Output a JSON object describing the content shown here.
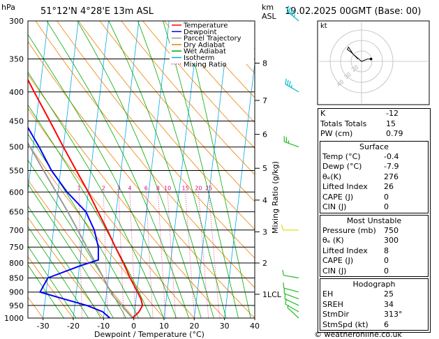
{
  "header": {
    "pressure_unit": "hPa",
    "location": "51°12'N  4°28'E  13m  ASL",
    "height_unit_line1": "km",
    "height_unit_line2": "ASL",
    "datetime": "19.02.2025  00GMT  (Base: 00)"
  },
  "footer": {
    "credit": "© weatheronline.co.uk"
  },
  "chart_data": {
    "type": "line",
    "xlabel": "Dewpoint / Temperature (°C)",
    "ylabel_right": "Mixing Ratio (g/kg)",
    "xlim": [
      -35,
      40
    ],
    "ylim": [
      1000,
      300
    ],
    "x_ticks": [
      -30,
      -20,
      -10,
      0,
      10,
      20,
      30,
      40
    ],
    "pressure_levels": [
      300,
      350,
      400,
      450,
      500,
      550,
      600,
      650,
      700,
      750,
      800,
      850,
      900,
      950,
      1000
    ],
    "km_ticks": [
      {
        "label": "8",
        "p": 356
      },
      {
        "label": "7",
        "p": 414
      },
      {
        "label": "6",
        "p": 475
      },
      {
        "label": "5",
        "p": 545
      },
      {
        "label": "4",
        "p": 620
      },
      {
        "label": "3",
        "p": 705
      },
      {
        "label": "2",
        "p": 800
      },
      {
        "label": "1LCL",
        "p": 908
      }
    ],
    "mixing_ratio_labels": [
      "1",
      "2",
      "3",
      "4",
      "6",
      "8",
      "10",
      "15",
      "20",
      "25"
    ],
    "mixing_ratio_values": [
      1,
      2,
      3,
      4,
      6,
      8,
      10,
      15,
      20,
      25
    ],
    "legend": [
      {
        "name": "Temperature",
        "color": "#ff0000",
        "style": "solid"
      },
      {
        "name": "Dewpoint",
        "color": "#0000ff",
        "style": "solid"
      },
      {
        "name": "Parcel Trajectory",
        "color": "#999999",
        "style": "solid"
      },
      {
        "name": "Dry Adiabat",
        "color": "#f08000",
        "style": "solid"
      },
      {
        "name": "Wet Adiabat",
        "color": "#00aa00",
        "style": "solid"
      },
      {
        "name": "Isotherm",
        "color": "#00aaee",
        "style": "solid"
      },
      {
        "name": "Mixing Ratio",
        "color": "#e0007f",
        "style": "dotted"
      }
    ],
    "temperature": [
      {
        "p": 1000,
        "t": -0.4
      },
      {
        "p": 975,
        "t": 1.5
      },
      {
        "p": 950,
        "t": 2.4
      },
      {
        "p": 925,
        "t": 1.6
      },
      {
        "p": 900,
        "t": 0.2
      },
      {
        "p": 850,
        "t": -2.8
      },
      {
        "p": 800,
        "t": -5.6
      },
      {
        "p": 750,
        "t": -8.9
      },
      {
        "p": 700,
        "t": -12.2
      },
      {
        "p": 650,
        "t": -16.0
      },
      {
        "p": 600,
        "t": -20.0
      },
      {
        "p": 550,
        "t": -24.8
      },
      {
        "p": 500,
        "t": -30.0
      },
      {
        "p": 450,
        "t": -35.5
      },
      {
        "p": 400,
        "t": -41.8
      },
      {
        "p": 350,
        "t": -48.8
      },
      {
        "p": 300,
        "t": -56.5
      }
    ],
    "dewpoint": [
      {
        "p": 1000,
        "t": -7.9
      },
      {
        "p": 975,
        "t": -10.5
      },
      {
        "p": 950,
        "t": -16.0
      },
      {
        "p": 925,
        "t": -24.0
      },
      {
        "p": 900,
        "t": -32.0
      },
      {
        "p": 850,
        "t": -30.0
      },
      {
        "p": 810,
        "t": -20.0
      },
      {
        "p": 790,
        "t": -14.0
      },
      {
        "p": 750,
        "t": -14.5
      },
      {
        "p": 700,
        "t": -16.5
      },
      {
        "p": 650,
        "t": -20.0
      },
      {
        "p": 600,
        "t": -27.0
      },
      {
        "p": 550,
        "t": -33.0
      },
      {
        "p": 500,
        "t": -38.0
      },
      {
        "p": 450,
        "t": -44.0
      },
      {
        "p": 400,
        "t": -51.0
      },
      {
        "p": 350,
        "t": -56.0
      },
      {
        "p": 300,
        "t": -64.0
      }
    ],
    "parcel": [
      {
        "p": 1000,
        "t": -0.4
      },
      {
        "p": 950,
        "t": -4.6
      },
      {
        "p": 908,
        "t": -8.2
      },
      {
        "p": 850,
        "t": -11.6
      },
      {
        "p": 800,
        "t": -14.8
      },
      {
        "p": 750,
        "t": -18.3
      },
      {
        "p": 700,
        "t": -22.0
      },
      {
        "p": 650,
        "t": -26.0
      },
      {
        "p": 600,
        "t": -30.6
      },
      {
        "p": 550,
        "t": -35.6
      },
      {
        "p": 500,
        "t": -41.0
      },
      {
        "p": 450,
        "t": -47.0
      },
      {
        "p": 400,
        "t": -53.5
      },
      {
        "p": 350,
        "t": -60.5
      },
      {
        "p": 300,
        "t": -68.0
      }
    ],
    "winds": [
      {
        "p": 1000,
        "dir": 313,
        "spd": 6
      },
      {
        "p": 975,
        "dir": 300,
        "spd": 8
      },
      {
        "p": 950,
        "dir": 295,
        "spd": 10
      },
      {
        "p": 925,
        "dir": 290,
        "spd": 12
      },
      {
        "p": 900,
        "dir": 285,
        "spd": 12
      },
      {
        "p": 850,
        "dir": 280,
        "spd": 12
      },
      {
        "p": 700,
        "dir": 270,
        "spd": 10
      },
      {
        "p": 500,
        "dir": 290,
        "spd": 25
      },
      {
        "p": 400,
        "dir": 300,
        "spd": 35
      },
      {
        "p": 300,
        "dir": 310,
        "spd": 45
      }
    ],
    "hodograph": {
      "unit": "kt",
      "ring_labels": [
        "40",
        "30",
        "20"
      ],
      "path": [
        [
          -3,
          2
        ],
        [
          -6,
          5
        ],
        [
          -9,
          8
        ],
        [
          -12,
          10
        ],
        [
          -11,
          12
        ],
        [
          -7,
          6
        ],
        [
          0,
          0
        ],
        [
          5,
          2
        ],
        [
          8,
          2
        ]
      ]
    }
  },
  "indices": {
    "top": [
      {
        "label": "K",
        "value": "-12"
      },
      {
        "label": "Totals Totals",
        "value": "15"
      },
      {
        "label": "PW (cm)",
        "value": "0.79"
      }
    ],
    "surface": {
      "title": "Surface",
      "rows": [
        {
          "label": "Temp (°C)",
          "value": "-0.4"
        },
        {
          "label": "Dewp (°C)",
          "value": "-7.9"
        },
        {
          "label": "θₑ(K)",
          "value": "276"
        },
        {
          "label": "Lifted Index",
          "value": "26"
        },
        {
          "label": "CAPE (J)",
          "value": "0"
        },
        {
          "label": "CIN (J)",
          "value": "0"
        }
      ]
    },
    "most_unstable": {
      "title": "Most Unstable",
      "rows": [
        {
          "label": "Pressure (mb)",
          "value": "750"
        },
        {
          "label": "θₑ (K)",
          "value": "300"
        },
        {
          "label": "Lifted Index",
          "value": "8"
        },
        {
          "label": "CAPE (J)",
          "value": "0"
        },
        {
          "label": "CIN (J)",
          "value": "0"
        }
      ]
    },
    "hodograph": {
      "title": "Hodograph",
      "rows": [
        {
          "label": "EH",
          "value": "25"
        },
        {
          "label": "SREH",
          "value": "34"
        },
        {
          "label": "StmDir",
          "value": "313°"
        },
        {
          "label": "StmSpd (kt)",
          "value": "6"
        }
      ]
    }
  }
}
